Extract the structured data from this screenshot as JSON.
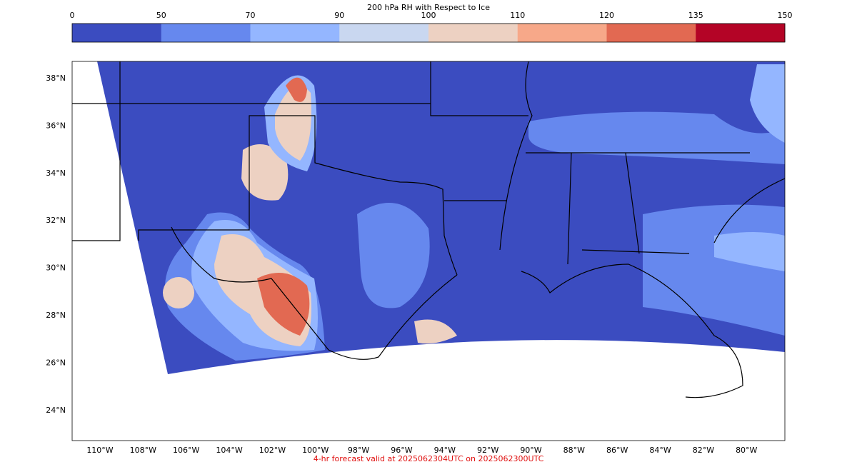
{
  "colorbar": {
    "title": "200 hPa RH with Respect to Ice",
    "levels": [
      0,
      50,
      70,
      90,
      100,
      110,
      120,
      135,
      150
    ],
    "colors": [
      "#3b4cc0",
      "#6688ee",
      "#94b6ff",
      "#c9d7f0",
      "#edd1c2",
      "#f7a889",
      "#e26952",
      "#b40426"
    ]
  },
  "map": {
    "lat_labels": [
      "38°N",
      "36°N",
      "34°N",
      "32°N",
      "30°N",
      "28°N",
      "26°N",
      "24°N"
    ],
    "lon_labels": [
      "110°W",
      "108°W",
      "106°W",
      "104°W",
      "102°W",
      "100°W",
      "98°W",
      "96°W",
      "94°W",
      "92°W",
      "90°W",
      "88°W",
      "86°W",
      "84°W",
      "82°W",
      "80°W"
    ],
    "footer": "4-hr forecast valid at 2025062304UTC on 2025062300UTC"
  }
}
